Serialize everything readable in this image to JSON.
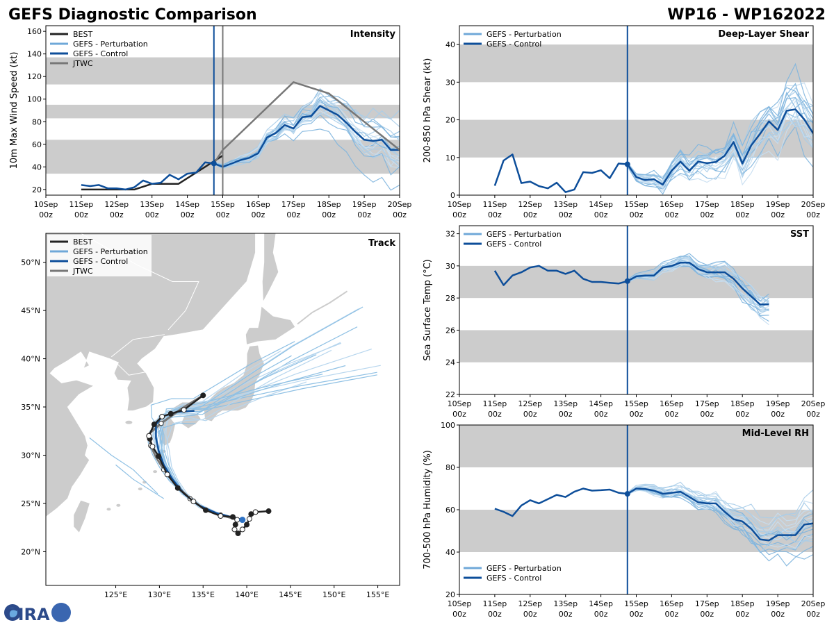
{
  "title_left": "GEFS Diagnostic Comparison",
  "title_right": "WP16 - WP162022",
  "logo_text": "CIRA",
  "colors": {
    "best": "#222222",
    "pert": "#7fb5de",
    "control": "#0d4e9a",
    "jtwc": "#777777",
    "band": "#cccccc"
  },
  "time_ticks": [
    "10Sep 00z",
    "11Sep 00z",
    "12Sep 00z",
    "13Sep 00z",
    "14Sep 00z",
    "15Sep 00z",
    "16Sep 00z",
    "17Sep 00z",
    "18Sep 00z",
    "19Sep 00z",
    "20Sep 00z"
  ],
  "chart_data": [
    {
      "id": "intensity",
      "type": "line",
      "title": "Intensity",
      "ylabel": "10m Max Wind Speed (kt)",
      "xlim": [
        0,
        10
      ],
      "ylim": [
        15,
        165
      ],
      "yticks": [
        20,
        40,
        60,
        80,
        100,
        120,
        140,
        160
      ],
      "bands": [
        [
          34,
          64
        ],
        [
          83,
          95
        ],
        [
          113,
          137
        ]
      ],
      "init_time": 4.75,
      "jtwc_line": 5.0,
      "legend": [
        "BEST",
        "GEFS - Perturbation",
        "GEFS - Control",
        "JTWC"
      ],
      "series": [
        {
          "name": "BEST",
          "x": [
            1,
            1.5,
            2,
            2.25,
            2.5,
            3,
            3.25,
            3.5,
            3.75,
            4,
            4.25,
            4.5,
            4.75,
            5
          ],
          "y": [
            20,
            20,
            20,
            20,
            20,
            25,
            25,
            25,
            25,
            30,
            35,
            40,
            45,
            50
          ]
        },
        {
          "name": "GEFS - Control",
          "x": [
            1,
            1.25,
            1.5,
            1.75,
            2,
            2.25,
            2.5,
            2.75,
            3,
            3.25,
            3.5,
            3.75,
            4,
            4.25,
            4.5,
            4.75,
            5,
            5.25,
            5.5,
            5.75,
            6,
            6.25,
            6.5,
            6.75,
            7,
            7.25,
            7.5,
            7.75,
            8,
            8.25,
            8.5,
            8.75,
            9,
            9.25,
            9.5,
            9.75,
            10
          ],
          "y": [
            24,
            23,
            24,
            21,
            21,
            20,
            22,
            28,
            25,
            26,
            33,
            29,
            34,
            35,
            44,
            43,
            40,
            43,
            46,
            48,
            52,
            66,
            70,
            77,
            74,
            84,
            85,
            94,
            90,
            86,
            79,
            71,
            64,
            63,
            64,
            55,
            55
          ]
        },
        {
          "name": "JTWC",
          "x": [
            4.75,
            5,
            5.5,
            6,
            7,
            8,
            9,
            10
          ],
          "y": [
            43,
            55,
            70,
            85,
            115,
            105,
            80,
            55
          ]
        }
      ],
      "perturbation_count": 20
    },
    {
      "id": "shear",
      "type": "line",
      "title": "Deep-Layer Shear",
      "ylabel": "200-850 hPa Shear (kt)",
      "xlim": [
        0,
        10
      ],
      "ylim": [
        0,
        45
      ],
      "yticks": [
        0,
        10,
        20,
        30,
        40
      ],
      "bands": [
        [
          10,
          20
        ],
        [
          30,
          40
        ]
      ],
      "init_time": 4.75,
      "legend": [
        "GEFS - Perturbation",
        "GEFS - Control"
      ],
      "series": [
        {
          "name": "GEFS - Control",
          "x": [
            1,
            1.25,
            1.5,
            1.75,
            2,
            2.25,
            2.5,
            2.75,
            3,
            3.25,
            3.5,
            3.75,
            4,
            4.25,
            4.5,
            4.75,
            5,
            5.25,
            5.5,
            5.75,
            6,
            6.25,
            6.5,
            6.75,
            7,
            7.25,
            7.5,
            7.75,
            8,
            8.25,
            8.5,
            8.75,
            9,
            9.25,
            9.5,
            9.75,
            10
          ],
          "y": [
            2.5,
            9.2,
            10.8,
            3.2,
            3.6,
            2.4,
            1.8,
            3.3,
            0.8,
            1.5,
            6.1,
            5.9,
            6.6,
            4.5,
            8.4,
            8.2,
            4.8,
            4.0,
            4.2,
            2.8,
            6.5,
            8.9,
            6.5,
            8.9,
            8.5,
            8.8,
            10.5,
            14.1,
            8.4,
            13.2,
            16.3,
            19.6,
            17.3,
            22.4,
            22.8,
            20.1,
            16.4
          ]
        }
      ],
      "perturbation_count": 20
    },
    {
      "id": "sst",
      "type": "line",
      "title": "SST",
      "ylabel": "Sea Surface Temp (°C)",
      "xlim": [
        0,
        10
      ],
      "ylim": [
        22,
        32.5
      ],
      "yticks": [
        22,
        24,
        26,
        28,
        30,
        32
      ],
      "bands": [
        [
          24,
          26
        ],
        [
          28,
          30
        ]
      ],
      "init_time": 4.75,
      "legend": [
        "GEFS - Perturbation",
        "GEFS - Control"
      ],
      "series": [
        {
          "name": "GEFS - Control",
          "x": [
            1,
            1.25,
            1.5,
            1.75,
            2,
            2.25,
            2.5,
            2.75,
            3,
            3.25,
            3.5,
            3.75,
            4,
            4.25,
            4.5,
            4.75,
            5,
            5.25,
            5.5,
            5.75,
            6,
            6.25,
            6.5,
            6.75,
            7,
            7.25,
            7.5,
            7.75,
            8,
            8.25,
            8.5,
            8.75
          ],
          "y": [
            29.7,
            28.8,
            29.4,
            29.6,
            29.9,
            30.0,
            29.7,
            29.7,
            29.5,
            29.7,
            29.2,
            29.0,
            29.0,
            28.95,
            28.9,
            29.05,
            29.35,
            29.4,
            29.4,
            29.9,
            30.0,
            30.2,
            30.2,
            29.8,
            29.6,
            29.6,
            29.6,
            29.2,
            28.6,
            28.1,
            27.6,
            27.6
          ]
        }
      ],
      "perturbation_count": 20
    },
    {
      "id": "rh",
      "type": "line",
      "title": "Mid-Level RH",
      "ylabel": "700-500 hPa Humidity (%)",
      "xlim": [
        0,
        10
      ],
      "ylim": [
        20,
        100
      ],
      "yticks": [
        20,
        40,
        60,
        80,
        100
      ],
      "bands": [
        [
          40,
          60
        ],
        [
          80,
          100
        ]
      ],
      "init_time": 4.75,
      "legend": [
        "GEFS - Perturbation",
        "GEFS - Control"
      ],
      "series": [
        {
          "name": "GEFS - Control",
          "x": [
            1,
            1.25,
            1.5,
            1.75,
            2,
            2.25,
            2.5,
            2.75,
            3,
            3.25,
            3.5,
            3.75,
            4,
            4.25,
            4.5,
            4.75,
            5,
            5.25,
            5.5,
            5.75,
            6,
            6.25,
            6.5,
            6.75,
            7,
            7.25,
            7.5,
            7.75,
            8,
            8.25,
            8.5,
            8.75,
            9,
            9.25,
            9.5,
            9.75,
            10
          ],
          "y": [
            60.5,
            59,
            57,
            62,
            64.5,
            63,
            65,
            67,
            66,
            68.5,
            70,
            69,
            69.2,
            69.5,
            68,
            67.5,
            70,
            69.8,
            69,
            67.5,
            68,
            68.5,
            66,
            63.5,
            63,
            63,
            59,
            55.5,
            54.5,
            51,
            46,
            45.5,
            48,
            48,
            48,
            53,
            53.5
          ]
        }
      ],
      "perturbation_count": 20
    },
    {
      "id": "track",
      "type": "scatter",
      "title": "Track",
      "lon_range": [
        117,
        157.5
      ],
      "lat_range": [
        16.5,
        53
      ],
      "lon_ticks": [
        "125°E",
        "130°E",
        "135°E",
        "140°E",
        "145°E",
        "150°E",
        "155°E"
      ],
      "lat_ticks": [
        "20°N",
        "25°N",
        "30°N",
        "35°N",
        "40°N",
        "45°N",
        "50°N"
      ],
      "lon_tick_values": [
        125,
        130,
        135,
        140,
        145,
        150,
        155
      ],
      "lat_tick_values": [
        20,
        25,
        30,
        35,
        40,
        45,
        50
      ],
      "legend": [
        "BEST",
        "GEFS - Perturbation",
        "GEFS - Control",
        "JTWC"
      ],
      "best": {
        "lon": [
          142.5,
          141.0,
          140.5,
          140.3,
          140.0,
          139.5,
          139.0,
          138.6,
          138.7,
          138.9,
          138.4,
          137.0,
          135.3,
          133.9,
          132.1,
          130.9,
          129.9,
          129.2,
          128.9,
          128.8,
          129.4,
          130.3,
          131.3,
          132.8,
          135.0
        ],
        "lat": [
          24.2,
          24.1,
          23.9,
          23.4,
          22.8,
          22.3,
          21.9,
          22.3,
          22.8,
          23.3,
          23.6,
          23.7,
          24.3,
          25.2,
          26.6,
          28.0,
          29.9,
          30.9,
          31.7,
          32.0,
          33.2,
          34.0,
          34.3,
          34.7,
          36.2
        ]
      },
      "jtwc": {
        "lon": [
          139.0,
          137.0,
          135.0,
          133.5,
          131.8,
          130.5,
          129.6,
          129.0,
          128.8,
          130.2,
          132.5,
          135.0
        ],
        "lat": [
          23.3,
          23.8,
          24.5,
          25.5,
          27.0,
          28.5,
          29.8,
          31.0,
          32.2,
          33.3,
          34.8,
          36.2
        ]
      },
      "control": {
        "lon": [
          139.5,
          138.2,
          136.5,
          134.5,
          132.8,
          131.5,
          130.5,
          129.9,
          129.6,
          129.6,
          130.3,
          132.0,
          134.0
        ],
        "lat": [
          23.3,
          23.6,
          24.0,
          24.8,
          26.0,
          27.5,
          29.0,
          30.5,
          31.8,
          33.2,
          34.0,
          34.5,
          34.6
        ]
      }
    }
  ]
}
